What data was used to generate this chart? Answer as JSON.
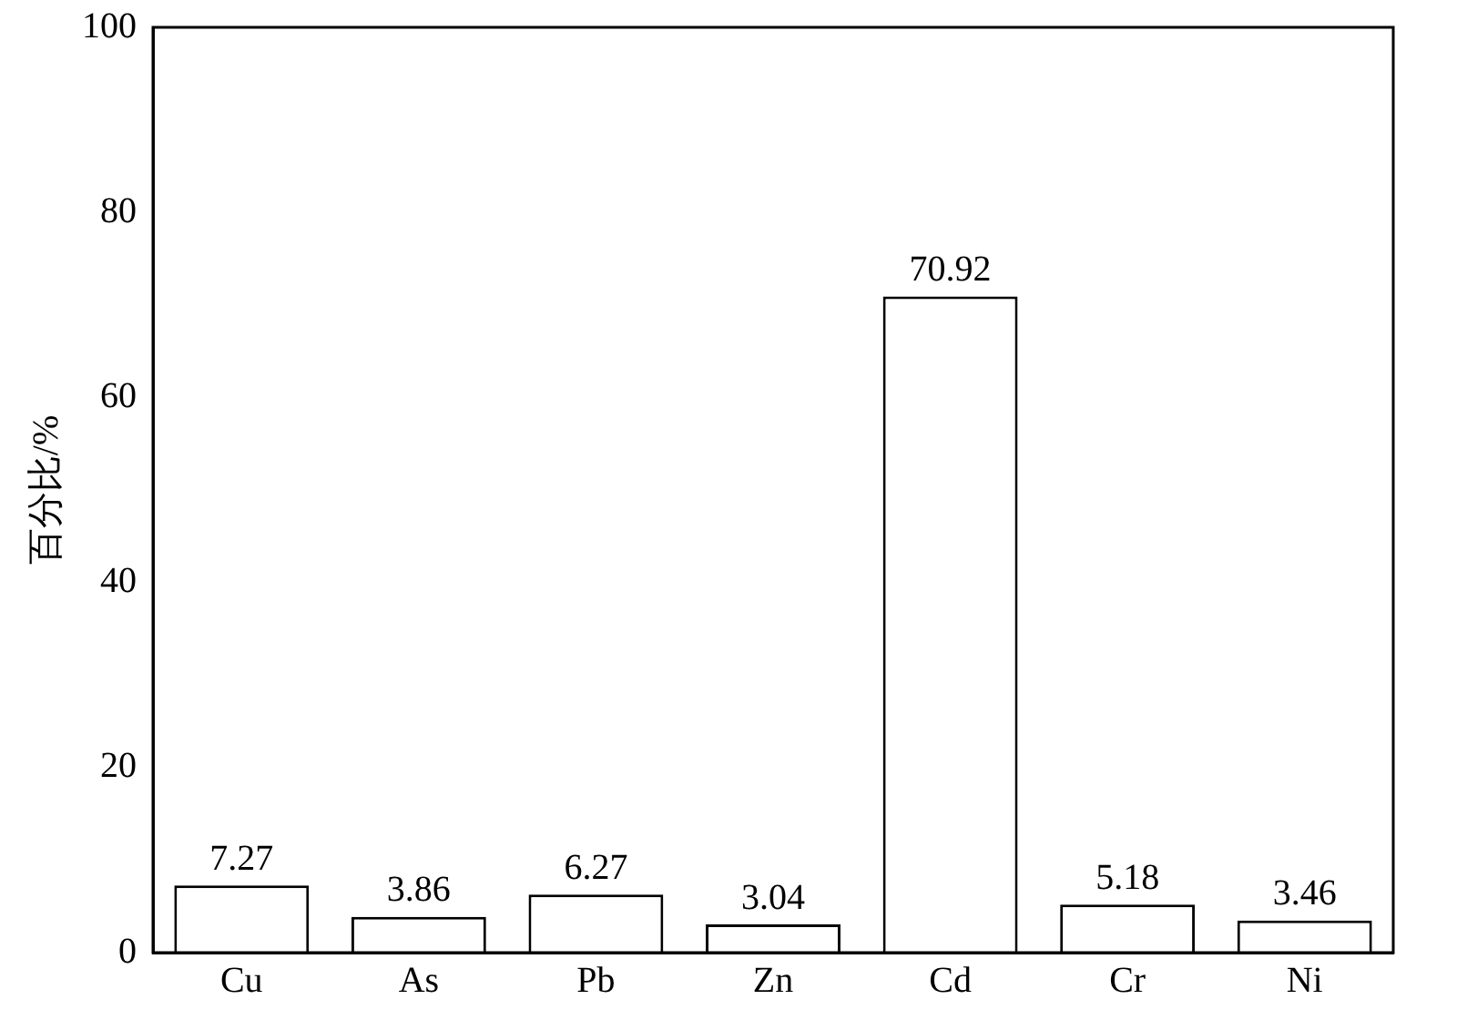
{
  "chart_data": {
    "type": "bar",
    "ylabel": "百分比/%",
    "categories": [
      "Cu",
      "As",
      "Pb",
      "Zn",
      "Cd",
      "Cr",
      "Ni"
    ],
    "values": [
      7.27,
      3.86,
      6.27,
      3.04,
      70.92,
      5.18,
      3.46
    ],
    "color": "#ffffff",
    "ylim": [
      0,
      100
    ],
    "yticks": [
      0,
      20,
      40,
      60,
      80,
      100
    ],
    "data_labels": true,
    "grid": false,
    "legend": false
  }
}
